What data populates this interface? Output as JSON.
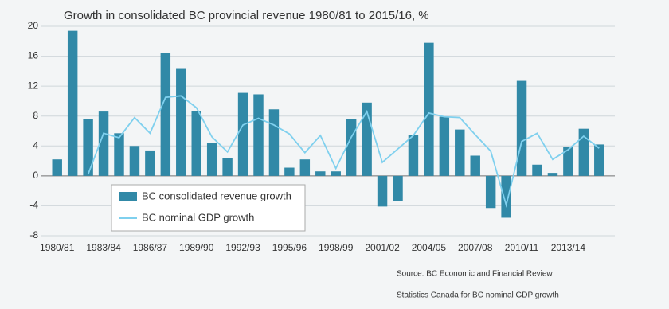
{
  "chart_data": {
    "type": "bar",
    "title": "Growth in consolidated BC provincial revenue 1980/81 to 2015/16, %",
    "categories": [
      "1980/81",
      null,
      null,
      "1983/84",
      null,
      null,
      "1986/87",
      null,
      null,
      "1989/90",
      null,
      null,
      "1992/93",
      null,
      null,
      "1995/96",
      null,
      null,
      "1998/99",
      null,
      null,
      "2001/02",
      null,
      null,
      "2004/05",
      null,
      null,
      "2007/08",
      null,
      null,
      "2010/11",
      null,
      null,
      "2013/14",
      null,
      null
    ],
    "series": [
      {
        "name": "BC consolidated revenue growth",
        "type": "bar",
        "color": "#3189a7",
        "values": [
          2.2,
          19.4,
          7.6,
          8.6,
          5.7,
          4.0,
          3.4,
          16.4,
          14.3,
          8.7,
          4.4,
          2.4,
          11.1,
          10.9,
          8.9,
          1.1,
          2.2,
          0.6,
          0.6,
          7.6,
          9.8,
          -4.1,
          -3.4,
          5.5,
          17.8,
          7.9,
          6.2,
          2.7,
          -4.3,
          -5.6,
          12.7,
          1.5,
          0.4,
          3.9,
          6.3,
          4.2
        ]
      },
      {
        "name": "BC nominal GDP growth",
        "type": "line",
        "color": "#7fd0ee",
        "values": [
          null,
          null,
          0.2,
          5.7,
          5.1,
          7.8,
          5.7,
          10.5,
          10.7,
          9.1,
          5.2,
          3.2,
          6.8,
          7.7,
          6.8,
          5.6,
          3.1,
          5.4,
          1.0,
          5.2,
          8.6,
          1.8,
          3.6,
          5.4,
          8.4,
          7.9,
          7.8,
          5.5,
          3.3,
          -3.9,
          4.6,
          5.7,
          2.2,
          3.5,
          5.3,
          3.7
        ]
      }
    ],
    "ylim": [
      -8,
      20
    ],
    "yticks": [
      -8,
      -4,
      0,
      4,
      8,
      12,
      16,
      20
    ],
    "grid": true,
    "notes": [
      "Source:  BC Economic and Financial Review",
      "Statistics  Canada  for BC nominal  GDP growth"
    ]
  }
}
